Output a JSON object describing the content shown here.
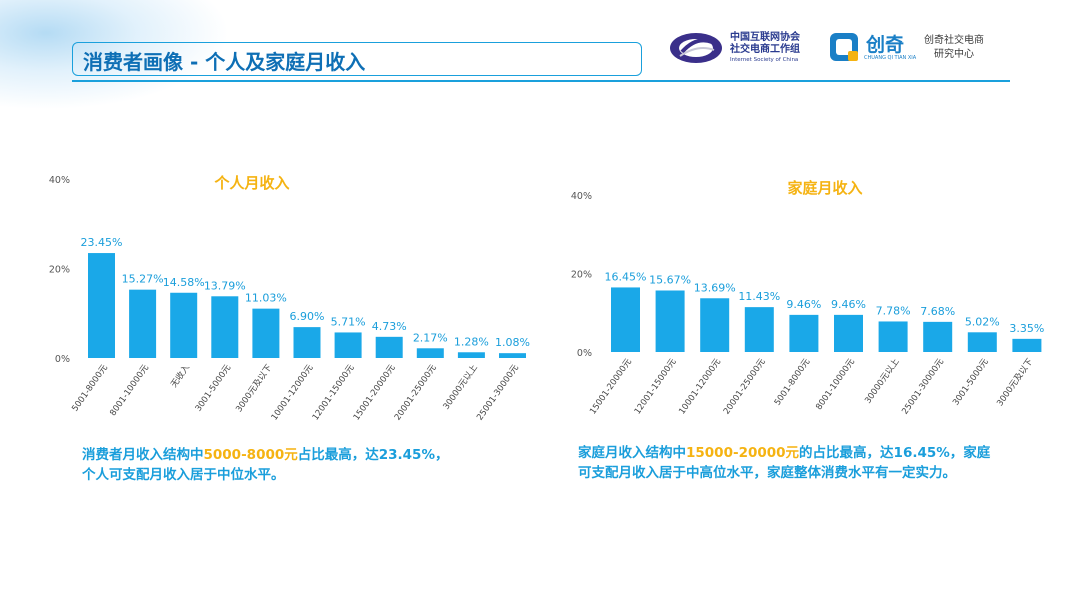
{
  "header": {
    "title": "消费者画像 - 个人及家庭月收入",
    "logo_left_line1": "中国互联网协会",
    "logo_left_line2": "社交电商工作组",
    "logo_left_sub": "Internet Society of China",
    "logo_right_name": "创奇",
    "logo_right_sub": "CHUANG QI TIAN XIA",
    "logo_right_text1": "创奇社交电商",
    "logo_right_text2": "研究中心"
  },
  "colors": {
    "bar": "#1aa8e8",
    "title": "#f5b312",
    "accent": "#1a9edb",
    "highlight": "#f5b312"
  },
  "chart_data": [
    {
      "type": "bar",
      "title": "个人月收入",
      "categories": [
        "5001-8000元",
        "8001-10000元",
        "无收入",
        "3001-5000元",
        "3000元及以下",
        "10001-12000元",
        "12001-15000元",
        "15001-20000元",
        "20001-25000元",
        "30000元以上",
        "25001-30000元"
      ],
      "values": [
        23.45,
        15.27,
        14.58,
        13.79,
        11.03,
        6.9,
        5.71,
        4.73,
        2.17,
        1.28,
        1.08
      ],
      "data_labels": [
        "23.45%",
        "15.27%",
        "14.58%",
        "13.79%",
        "11.03%",
        "6.90%",
        "5.71%",
        "4.73%",
        "2.17%",
        "1.28%",
        "1.08%"
      ],
      "ylim": [
        0,
        40
      ],
      "yticks": [
        "0%",
        "20%",
        "40%"
      ],
      "xlabel": "",
      "ylabel": ""
    },
    {
      "type": "bar",
      "title": "家庭月收入",
      "categories": [
        "15001-20000元",
        "12001-15000元",
        "10001-12000元",
        "20001-25000元",
        "5001-8000元",
        "8001-10000元",
        "30000元以上",
        "25001-30000元",
        "3001-5000元",
        "3000元及以下"
      ],
      "values": [
        16.45,
        15.67,
        13.69,
        11.43,
        9.46,
        9.46,
        7.78,
        7.68,
        5.02,
        3.35
      ],
      "data_labels": [
        "16.45%",
        "15.67%",
        "13.69%",
        "11.43%",
        "9.46%",
        "9.46%",
        "7.78%",
        "7.68%",
        "5.02%",
        "3.35%"
      ],
      "ylim": [
        0,
        40
      ],
      "yticks": [
        "0%",
        "20%",
        "40%"
      ],
      "xlabel": "",
      "ylabel": ""
    }
  ],
  "captions": {
    "left_pre": "消费者月收入结构中",
    "left_hl": "5000-8000元",
    "left_post": "占比最高，达23.45%，",
    "left_line2": "个人可支配月收入居于中位水平。",
    "right_pre": "家庭月收入结构中",
    "right_hl": "15000-20000元",
    "right_post": "的占比最高，达16.45%，家庭",
    "right_line2": "可支配月收入居于中高位水平，家庭整体消费水平有一定实力。"
  }
}
